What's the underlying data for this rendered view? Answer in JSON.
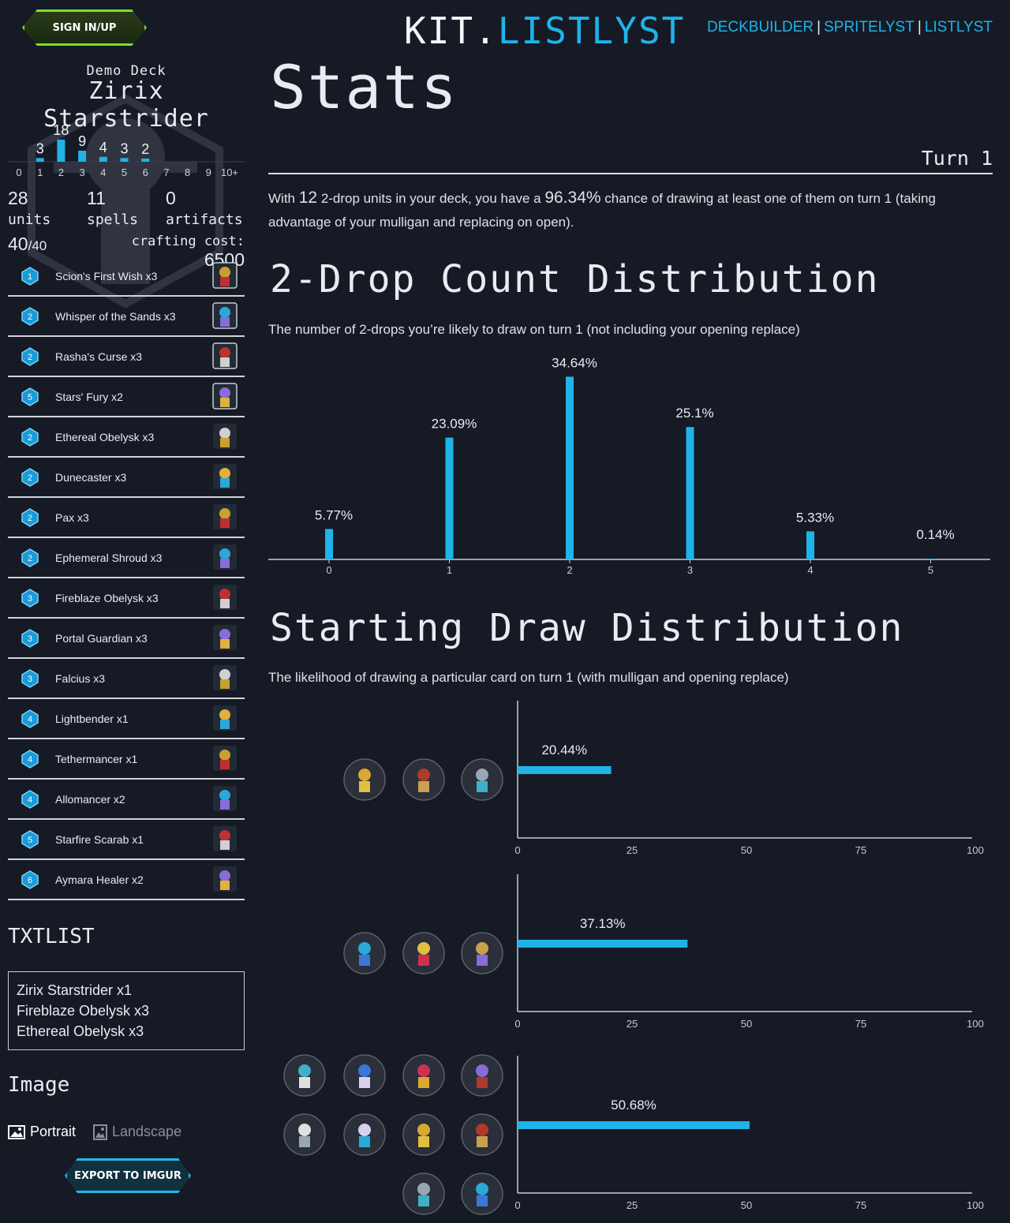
{
  "header": {
    "signin_label": "SIGN IN/UP",
    "logo_part1": "KIT.",
    "logo_part2": "LISTLYST",
    "nav": [
      "DECKBUILDER",
      "SPRITELYST",
      "LISTLYST"
    ],
    "nav_sep": "|"
  },
  "sidebar": {
    "demo_label": "Demo Deck",
    "deck_name": "Zirix Starstrider",
    "curve": {
      "labels": [
        "0",
        "1",
        "2",
        "3",
        "4",
        "5",
        "6",
        "7",
        "8",
        "9",
        "10+"
      ],
      "values": [
        0,
        3,
        18,
        9,
        4,
        3,
        2,
        0,
        0,
        0,
        0
      ]
    },
    "counts": {
      "units": "28",
      "units_label": "units",
      "spells": "11",
      "spells_label": "spells",
      "artifacts": "0",
      "artifacts_label": "artifacts"
    },
    "total": "40",
    "total_max": "/40",
    "crafting_label": "crafting cost:",
    "crafting_cost": "6500",
    "cards": [
      {
        "cost": "1",
        "name": "Scion's First Wish x3",
        "art": "spell-orbs-icon"
      },
      {
        "cost": "2",
        "name": "Whisper of the Sands x3",
        "art": "spell-eye-icon"
      },
      {
        "cost": "2",
        "name": "Rasha's Curse x3",
        "art": "spell-mask-icon"
      },
      {
        "cost": "5",
        "name": "Stars' Fury x2",
        "art": "spell-stars-icon"
      },
      {
        "cost": "2",
        "name": "Ethereal Obelysk x3",
        "art": "obelysk-red-sprite"
      },
      {
        "cost": "2",
        "name": "Dunecaster x3",
        "art": "dunecaster-sprite"
      },
      {
        "cost": "2",
        "name": "Pax x3",
        "art": "pax-sprite"
      },
      {
        "cost": "2",
        "name": "Ephemeral Shroud x3",
        "art": "shroud-sprite"
      },
      {
        "cost": "3",
        "name": "Fireblaze Obelysk x3",
        "art": "obelysk-gold-sprite"
      },
      {
        "cost": "3",
        "name": "Portal Guardian x3",
        "art": "guardian-sprite"
      },
      {
        "cost": "3",
        "name": "Falcius x3",
        "art": "falcius-sprite"
      },
      {
        "cost": "4",
        "name": "Lightbender x1",
        "art": "lightbender-sprite"
      },
      {
        "cost": "4",
        "name": "Tethermancer x1",
        "art": "tethermancer-sprite"
      },
      {
        "cost": "4",
        "name": "Allomancer x2",
        "art": "allomancer-sprite"
      },
      {
        "cost": "5",
        "name": "Starfire Scarab x1",
        "art": "scarab-sprite"
      },
      {
        "cost": "6",
        "name": "Aymara Healer x2",
        "art": "healer-sprite"
      }
    ],
    "txtlist_heading": "TXTLIST",
    "txtlist_lines": [
      "Zirix Starstrider x1",
      "Fireblaze Obelysk x3",
      "Ethereal Obelysk x3"
    ],
    "image_heading": "Image",
    "portrait_label": "Portrait",
    "landscape_label": "Landscape",
    "export_label": "EXPORT TO IMGUR"
  },
  "main": {
    "title": "Stats",
    "turn_label": "Turn 1",
    "para_pre": "With ",
    "para_count": "12",
    "para_mid": " 2-drop units in your deck, you have a ",
    "para_pct": "96.34%",
    "para_post": " chance of drawing at least one of them on turn 1 (taking advantage of your mulligan and replacing on open).",
    "dist_heading": "2-Drop Count Distribution",
    "dist_sub": "The number of 2-drops you’re likely to draw on turn 1 (not including your opening replace)",
    "draw_heading": "Starting Draw Distribution",
    "draw_sub": "The likelihood of drawing a particular card on turn 1 (with mulligan and opening replace)"
  },
  "colors": {
    "accent": "#1fb3e8",
    "signin": "#7be02a",
    "bg": "#151a25"
  },
  "chart_data": [
    {
      "type": "bar",
      "title": "2-Drop Count Distribution",
      "categories": [
        "0",
        "1",
        "2",
        "3",
        "4",
        "5"
      ],
      "values": [
        5.77,
        23.09,
        34.64,
        25.1,
        5.33,
        0.14
      ],
      "value_labels": [
        "5.77%",
        "23.09%",
        "34.64%",
        "25.1%",
        "5.33%",
        "0.14%"
      ],
      "ylim": [
        0,
        35
      ]
    },
    {
      "type": "bar",
      "orientation": "horizontal",
      "groups": [
        {
          "cards": [
            "Starfire Scarab",
            "Lightbender",
            "Tethermancer"
          ],
          "value": 20.44,
          "label": "20.44%"
        },
        {
          "cards": [
            "Aymara Healer",
            "Stars' Fury",
            "Allomancer"
          ],
          "value": 37.13,
          "label": "37.13%"
        },
        {
          "cards": [
            "Fireblaze Obelysk",
            "Ethereal Obelysk",
            "Dunecaster",
            "Scion's First Wish",
            "Portal Guardian",
            "Pax",
            "Falcius",
            "Whisper of the Sands",
            "Rasha's Curse",
            "Ephemeral Shroud"
          ],
          "value": 50.68,
          "label": "50.68%"
        }
      ],
      "xticks": [
        "0",
        "25",
        "50",
        "75",
        "100"
      ],
      "xlim": [
        0,
        100
      ]
    }
  ]
}
